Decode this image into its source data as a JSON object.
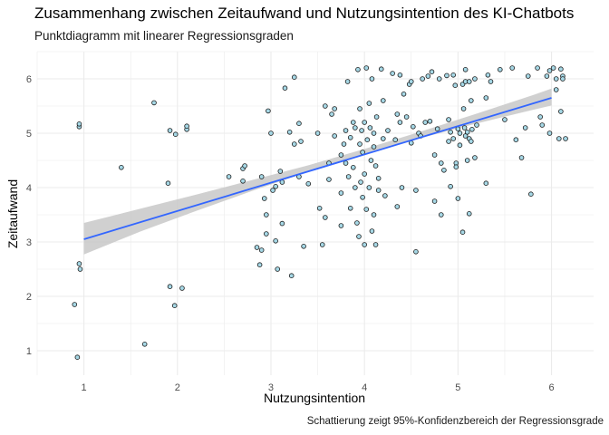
{
  "chart_data": {
    "type": "scatter",
    "title": "Zusammenhang zwischen Zeitaufwand und Nutzungsintention des KI-Chatbots",
    "subtitle": "Punktdiagramm mit linearer Regressionsgraden",
    "caption": "Schattierung zeigt 95%-Konfidenzbereich der Regressionsgrade",
    "xlabel": "Nutzungsintention",
    "ylabel": "Zeitaufwand",
    "xlim": [
      0.5,
      6.45
    ],
    "ylim": [
      0.55,
      6.5
    ],
    "x_ticks": [
      1,
      2,
      3,
      4,
      5,
      6
    ],
    "y_ticks": [
      1,
      2,
      3,
      4,
      5,
      6
    ],
    "grid": true,
    "colors": {
      "point_fill": "#a6d8e6",
      "point_stroke": "#1a1a1a",
      "line": "#3366ff",
      "band": "#c8c8c8",
      "grid": "#ebebeb"
    },
    "regression": {
      "x": [
        1,
        6
      ],
      "y": [
        3.05,
        5.65
      ]
    },
    "confidence_band": {
      "x": [
        1,
        1.6,
        2.2,
        2.8,
        3.4,
        4.0,
        4.6,
        5.2,
        5.8,
        6
      ],
      "lower": [
        2.77,
        3.19,
        3.57,
        3.94,
        4.29,
        4.61,
        4.91,
        5.18,
        5.43,
        5.51
      ],
      "upper": [
        3.35,
        3.61,
        3.87,
        4.14,
        4.41,
        4.71,
        5.03,
        5.36,
        5.7,
        5.82
      ]
    },
    "points": [
      [
        0.9,
        1.85
      ],
      [
        0.93,
        0.88
      ],
      [
        0.95,
        5.12
      ],
      [
        0.95,
        5.17
      ],
      [
        0.95,
        2.6
      ],
      [
        0.96,
        2.5
      ],
      [
        1.4,
        4.37
      ],
      [
        1.65,
        1.12
      ],
      [
        1.75,
        5.56
      ],
      [
        1.9,
        4.08
      ],
      [
        1.92,
        2.18
      ],
      [
        1.92,
        5.05
      ],
      [
        1.97,
        1.83
      ],
      [
        1.98,
        4.98
      ],
      [
        2.05,
        2.15
      ],
      [
        2.1,
        5.07
      ],
      [
        2.1,
        5.13
      ],
      [
        2.55,
        4.2
      ],
      [
        2.7,
        4.12
      ],
      [
        2.7,
        4.35
      ],
      [
        2.72,
        4.4
      ],
      [
        2.85,
        2.9
      ],
      [
        2.88,
        2.58
      ],
      [
        2.9,
        2.85
      ],
      [
        2.9,
        4.2
      ],
      [
        2.93,
        3.8
      ],
      [
        2.95,
        3.5
      ],
      [
        2.95,
        3.15
      ],
      [
        2.97,
        5.41
      ],
      [
        3.0,
        5.0
      ],
      [
        3.02,
        3.95
      ],
      [
        3.05,
        4.02
      ],
      [
        3.05,
        3.02
      ],
      [
        3.07,
        2.5
      ],
      [
        3.1,
        4.3
      ],
      [
        3.12,
        3.34
      ],
      [
        3.12,
        4.1
      ],
      [
        3.15,
        5.83
      ],
      [
        3.2,
        5.02
      ],
      [
        3.22,
        2.38
      ],
      [
        3.25,
        6.03
      ],
      [
        3.25,
        4.8
      ],
      [
        3.3,
        5.18
      ],
      [
        3.3,
        4.2
      ],
      [
        3.32,
        4.85
      ],
      [
        3.35,
        2.92
      ],
      [
        3.4,
        4.07
      ],
      [
        3.5,
        5.0
      ],
      [
        3.52,
        3.62
      ],
      [
        3.55,
        2.95
      ],
      [
        3.58,
        5.5
      ],
      [
        3.58,
        3.45
      ],
      [
        3.62,
        4.15
      ],
      [
        3.62,
        4.45
      ],
      [
        3.65,
        5.35
      ],
      [
        3.68,
        4.95
      ],
      [
        3.68,
        5.45
      ],
      [
        3.75,
        3.3
      ],
      [
        3.75,
        3.9
      ],
      [
        3.75,
        4.6
      ],
      [
        3.78,
        4.8
      ],
      [
        3.8,
        5.05
      ],
      [
        3.8,
        4.45
      ],
      [
        3.82,
        5.95
      ],
      [
        3.83,
        4.2
      ],
      [
        3.85,
        3.62
      ],
      [
        3.85,
        4.92
      ],
      [
        3.88,
        5.2
      ],
      [
        3.88,
        4.37
      ],
      [
        3.9,
        5.1
      ],
      [
        3.9,
        4.0
      ],
      [
        3.92,
        3.35
      ],
      [
        3.93,
        6.17
      ],
      [
        3.94,
        3.1
      ],
      [
        3.95,
        5.45
      ],
      [
        3.95,
        4.8
      ],
      [
        3.96,
        4.1
      ],
      [
        3.97,
        5.05
      ],
      [
        3.98,
        3.82
      ],
      [
        3.98,
        4.65
      ],
      [
        4.0,
        2.95
      ],
      [
        4.0,
        5.2
      ],
      [
        4.0,
        4.25
      ],
      [
        4.02,
        6.2
      ],
      [
        4.02,
        3.6
      ],
      [
        4.03,
        4.88
      ],
      [
        4.05,
        5.55
      ],
      [
        4.05,
        4.0
      ],
      [
        4.06,
        5.1
      ],
      [
        4.07,
        4.5
      ],
      [
        4.08,
        6.0
      ],
      [
        4.08,
        3.2
      ],
      [
        4.1,
        4.75
      ],
      [
        4.1,
        3.5
      ],
      [
        4.1,
        5.0
      ],
      [
        4.12,
        2.95
      ],
      [
        4.12,
        4.4
      ],
      [
        4.13,
        5.3
      ],
      [
        4.15,
        3.95
      ],
      [
        4.15,
        4.17
      ],
      [
        4.18,
        6.18
      ],
      [
        4.2,
        5.6
      ],
      [
        4.2,
        4.9
      ],
      [
        4.22,
        3.85
      ],
      [
        4.25,
        5.05
      ],
      [
        4.3,
        6.1
      ],
      [
        4.33,
        4.88
      ],
      [
        4.35,
        5.35
      ],
      [
        4.35,
        3.65
      ],
      [
        4.38,
        6.07
      ],
      [
        4.38,
        5.2
      ],
      [
        4.4,
        4.0
      ],
      [
        4.42,
        5.72
      ],
      [
        4.45,
        5.3
      ],
      [
        4.48,
        5.9
      ],
      [
        4.5,
        5.95
      ],
      [
        4.5,
        4.82
      ],
      [
        4.52,
        5.12
      ],
      [
        4.55,
        3.95
      ],
      [
        4.55,
        2.82
      ],
      [
        4.58,
        5.0
      ],
      [
        4.6,
        4.95
      ],
      [
        4.62,
        6.0
      ],
      [
        4.65,
        5.2
      ],
      [
        4.68,
        6.05
      ],
      [
        4.7,
        5.22
      ],
      [
        4.72,
        6.13
      ],
      [
        4.75,
        4.6
      ],
      [
        4.75,
        3.75
      ],
      [
        4.78,
        5.08
      ],
      [
        4.8,
        6.0
      ],
      [
        4.82,
        3.5
      ],
      [
        4.82,
        4.45
      ],
      [
        4.85,
        4.32
      ],
      [
        4.88,
        6.06
      ],
      [
        4.9,
        5.25
      ],
      [
        4.9,
        4.85
      ],
      [
        4.92,
        5.02
      ],
      [
        4.92,
        4.02
      ],
      [
        4.95,
        4.9
      ],
      [
        4.95,
        6.07
      ],
      [
        4.97,
        5.88
      ],
      [
        4.98,
        4.45
      ],
      [
        4.98,
        4.38
      ],
      [
        5.0,
        5.08
      ],
      [
        5.0,
        3.8
      ],
      [
        5.02,
        5.0
      ],
      [
        5.02,
        4.78
      ],
      [
        5.05,
        5.9
      ],
      [
        5.05,
        3.18
      ],
      [
        5.06,
        5.45
      ],
      [
        5.07,
        5.1
      ],
      [
        5.08,
        5.95
      ],
      [
        5.08,
        4.95
      ],
      [
        5.08,
        6.17
      ],
      [
        5.1,
        5.02
      ],
      [
        5.1,
        4.5
      ],
      [
        5.12,
        4.9
      ],
      [
        5.12,
        5.95
      ],
      [
        5.12,
        3.52
      ],
      [
        5.14,
        5.6
      ],
      [
        5.14,
        4.85
      ],
      [
        5.15,
        5.07
      ],
      [
        5.18,
        6.0
      ],
      [
        5.18,
        4.55
      ],
      [
        5.2,
        5.15
      ],
      [
        5.3,
        5.65
      ],
      [
        5.3,
        4.08
      ],
      [
        5.32,
        6.07
      ],
      [
        5.35,
        5.95
      ],
      [
        5.45,
        6.17
      ],
      [
        5.5,
        5.25
      ],
      [
        5.58,
        6.2
      ],
      [
        5.62,
        4.88
      ],
      [
        5.68,
        4.55
      ],
      [
        5.72,
        5.1
      ],
      [
        5.75,
        6.05
      ],
      [
        5.78,
        3.88
      ],
      [
        5.85,
        6.2
      ],
      [
        5.88,
        5.3
      ],
      [
        5.9,
        5.15
      ],
      [
        5.95,
        6.05
      ],
      [
        5.98,
        5.0
      ],
      [
        5.98,
        6.15
      ],
      [
        6.02,
        6.2
      ],
      [
        6.05,
        5.8
      ],
      [
        6.05,
        6.0
      ],
      [
        6.08,
        4.9
      ],
      [
        6.1,
        5.4
      ],
      [
        6.1,
        6.18
      ],
      [
        6.12,
        6.05
      ],
      [
        6.12,
        6.0
      ],
      [
        6.15,
        4.9
      ]
    ]
  }
}
